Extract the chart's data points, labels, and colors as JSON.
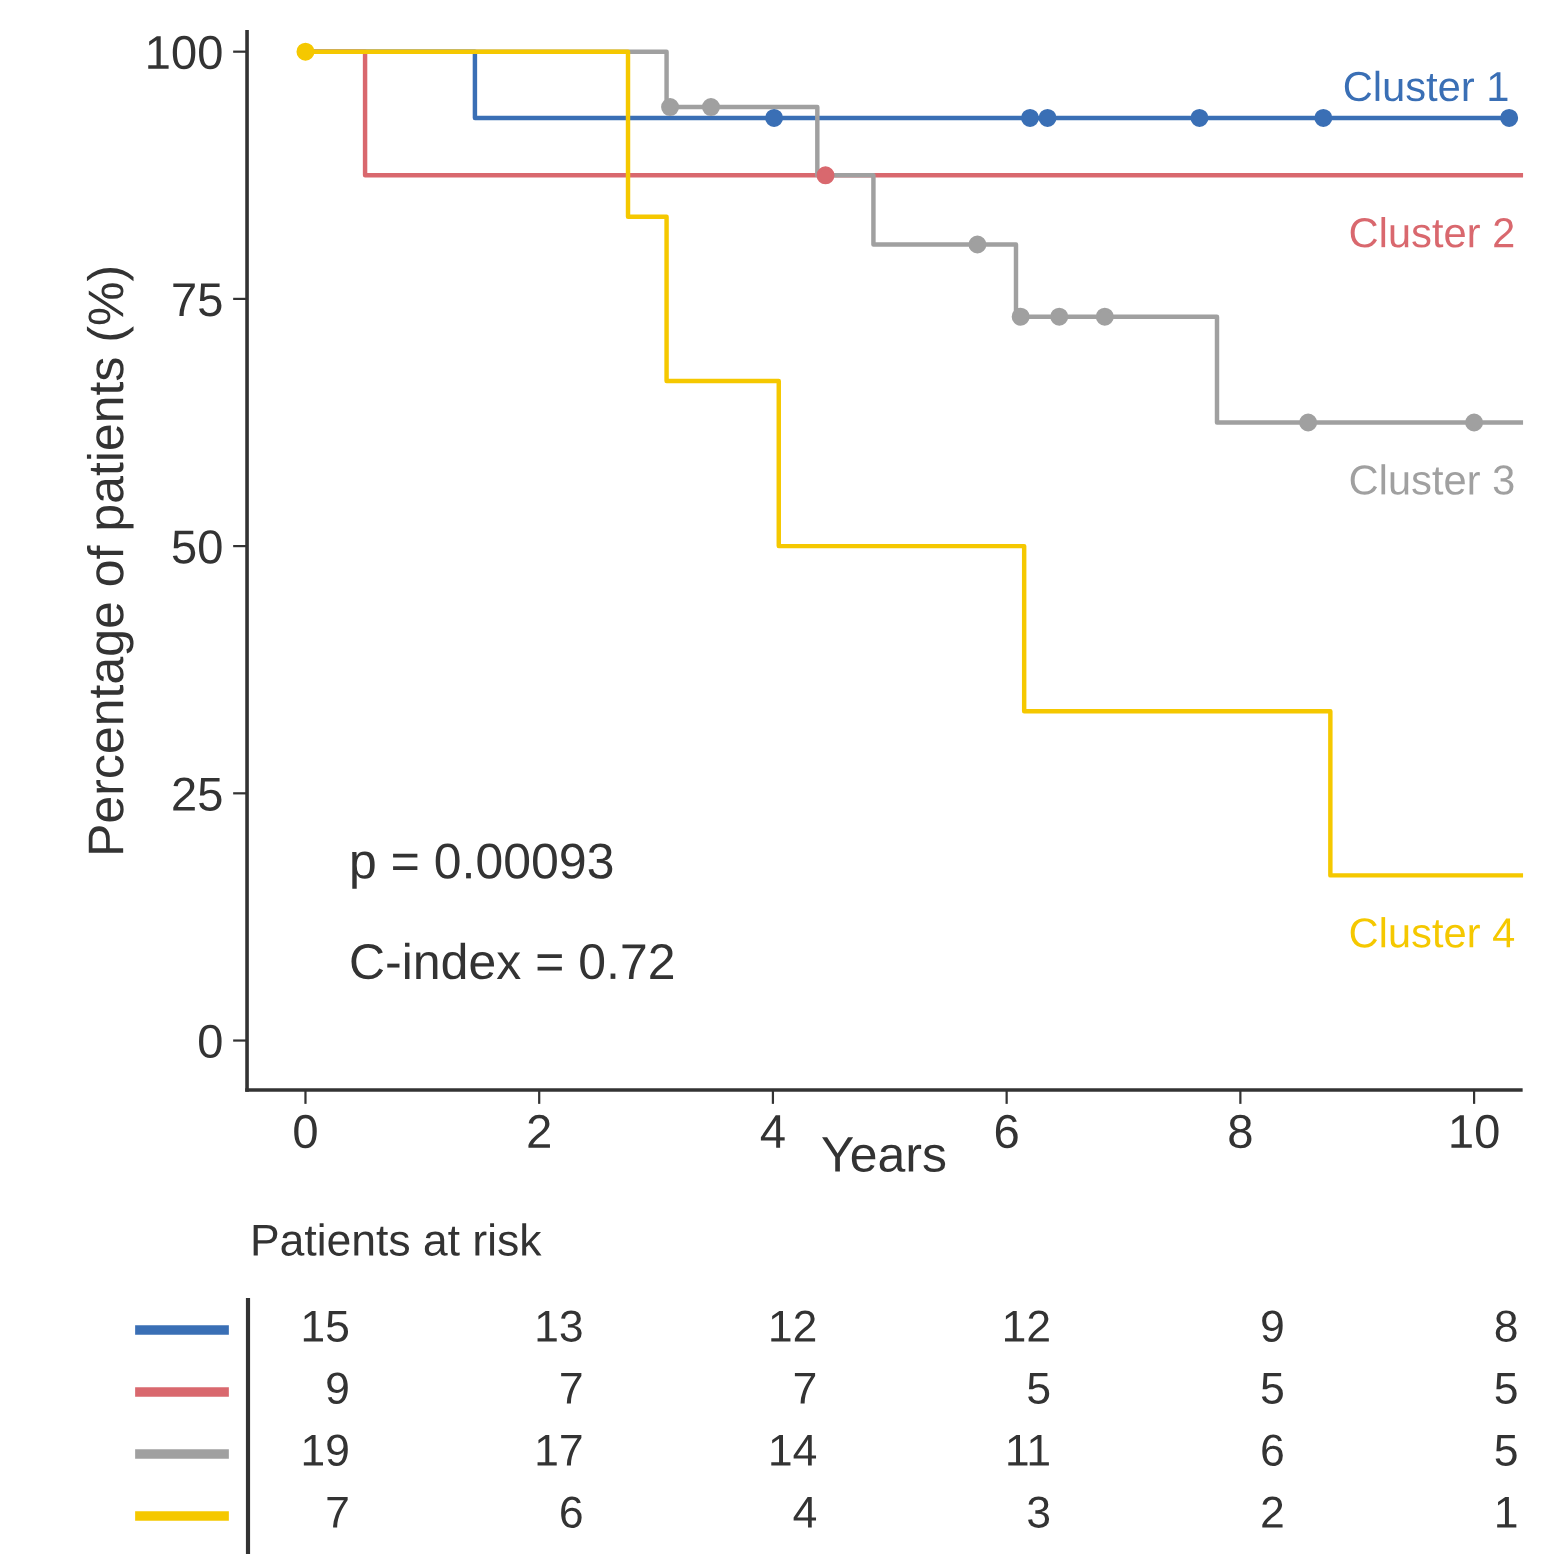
{
  "chart_data": {
    "type": "step",
    "xlabel": "Years",
    "ylabel": "Percentage of patients (%)",
    "xlim": [
      -0.5,
      10.4
    ],
    "xticks": [
      0,
      2,
      4,
      6,
      8,
      10
    ],
    "ylim": [
      -5,
      102
    ],
    "yticks": [
      0,
      25,
      50,
      75,
      100
    ],
    "grid": false,
    "legend": false,
    "series": [
      {
        "name": "Cluster 1",
        "color": "#3a6fb5",
        "x": [
          0,
          1.45,
          10.35
        ],
        "values": [
          100,
          93.3,
          93.3
        ]
      },
      {
        "name": "Cluster 2",
        "color": "#d9686e",
        "x": [
          0,
          0.51,
          10.4
        ],
        "values": [
          100,
          87.5,
          87.5
        ]
      },
      {
        "name": "Cluster 3",
        "color": "#a0a0a0",
        "x": [
          0,
          3.09,
          4.38,
          4.86,
          6.08,
          7.8,
          10.4
        ],
        "values": [
          100,
          94.4,
          87.5,
          80.5,
          73.2,
          62.5,
          62.5
        ]
      },
      {
        "name": "Cluster 4",
        "color": "#f5c800",
        "x": [
          0,
          2.76,
          3.09,
          4.05,
          6.15,
          8.77,
          10.4
        ],
        "values": [
          100,
          83.3,
          66.7,
          50,
          33.3,
          16.7,
          16.7
        ]
      },
      {
        "type": "scatter",
        "marker": "circle",
        "color": "#3a6fb5",
        "x": [
          4.01,
          6.2,
          6.35,
          7.65,
          8.71,
          10.3
        ],
        "values": [
          93.3,
          93.3,
          93.3,
          93.3,
          93.3,
          93.3
        ]
      },
      {
        "type": "scatter",
        "marker": "circle",
        "color": "#d9686e",
        "x": [
          4.45
        ],
        "values": [
          87.5
        ]
      },
      {
        "type": "scatter",
        "marker": "circle",
        "color": "#a0a0a0",
        "x": [
          3.12,
          3.47,
          5.75,
          6.12,
          6.45,
          6.84,
          8.58,
          10.0
        ],
        "values": [
          94.4,
          94.4,
          80.5,
          73.2,
          73.2,
          73.2,
          62.5,
          62.5
        ]
      },
      {
        "type": "scatter",
        "marker": "circle",
        "color": "#f5c800",
        "x": [
          0
        ],
        "values": [
          100
        ]
      }
    ],
    "annotations": [
      "p = 0.00093",
      "C-index = 0.72",
      "Patients at risk",
      "15",
      "13",
      "12",
      "12",
      "9",
      "8",
      "9",
      "7",
      "7",
      "5",
      "5",
      "5",
      "19",
      "17",
      "14",
      "11",
      "6",
      "5",
      "7",
      "6",
      "4",
      "3",
      "2",
      "1"
    ]
  }
}
